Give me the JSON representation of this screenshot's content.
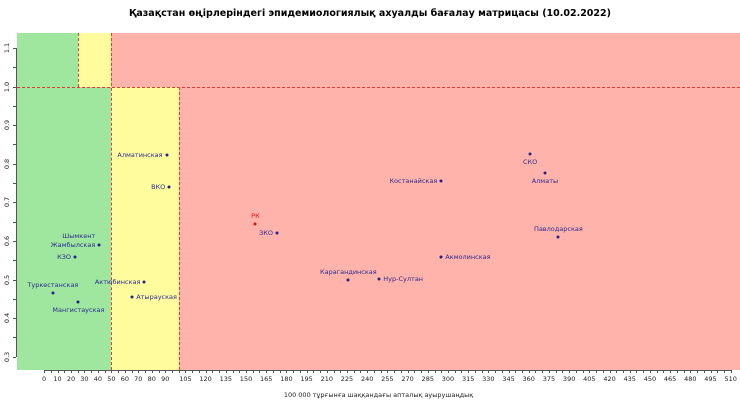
{
  "title": "Қазақстан өңірлеріндегі эпидемиологиялық ахуалды бағалау матрицасы (10.02.2022)",
  "chart_data": {
    "type": "scatter",
    "title": "Қазақстан өңірлеріндегі эпидемиологиялық ахуалды бағалау матрицасы (10.02.2022)",
    "xlabel": "100 000 тұрғынға шаққандағы апталық ауырушаңдық",
    "ylabel": "",
    "xlim": [
      -20.1,
      516.9
    ],
    "ylim": [
      0.2655,
      1.139
    ],
    "x_tick_range": {
      "from": 0,
      "to": 510,
      "minor_step": 5
    },
    "x_tick_labels": [
      0,
      10,
      20,
      30,
      40,
      50,
      60,
      70,
      80,
      90,
      105,
      120,
      135,
      150,
      165,
      180,
      195,
      210,
      225,
      240,
      255,
      270,
      285,
      300,
      315,
      330,
      345,
      360,
      375,
      390,
      405,
      420,
      435,
      450,
      465,
      480,
      495,
      510
    ],
    "y_tick_range": {
      "from": 0.3,
      "to": 1.1,
      "minor_step": 0.05
    },
    "y_tick_labels": [
      "0.3",
      "0.4",
      "0.5",
      "0.6",
      "0.7",
      "0.8",
      "0.9",
      "1.0",
      "1.1"
    ],
    "grid": false,
    "legend": "none",
    "threshold_line_y": 1.0,
    "zones": [
      {
        "x0": -20.1,
        "x1": 25,
        "y0": 1.0,
        "y1": 1.139,
        "color": "green"
      },
      {
        "x0": 25,
        "x1": 50,
        "y0": 1.0,
        "y1": 1.139,
        "color": "yellow"
      },
      {
        "x0": 50,
        "x1": 516.9,
        "y0": 1.0,
        "y1": 1.139,
        "color": "red"
      },
      {
        "x0": -20.1,
        "x1": 50,
        "y0": 0.2655,
        "y1": 1.0,
        "color": "green"
      },
      {
        "x0": 50,
        "x1": 100,
        "y0": 0.2655,
        "y1": 1.0,
        "color": "yellow"
      },
      {
        "x0": 100,
        "x1": 516.9,
        "y0": 0.2655,
        "y1": 1.0,
        "color": "red"
      }
    ],
    "dashed_lines": [
      {
        "type": "h",
        "y": 1.0,
        "x0": -20.1,
        "x1": 516.9
      },
      {
        "type": "v",
        "x": 25,
        "y0": 1.0,
        "y1": 1.139
      },
      {
        "type": "v",
        "x": 50,
        "y0": 0.2655,
        "y1": 1.139
      },
      {
        "type": "v",
        "x": 100,
        "y0": 0.2655,
        "y1": 1.0
      }
    ],
    "points": [
      {
        "name": "Туркестанская",
        "x": 6.5,
        "y": 0.466,
        "label_pos": "above"
      },
      {
        "name": "КЗО",
        "x": 23,
        "y": 0.558,
        "label_pos": "left"
      },
      {
        "name": "Мангистауская",
        "x": 25.5,
        "y": 0.441,
        "label_pos": "below"
      },
      {
        "name": "Шымкент",
        "x": 41,
        "y": 0.59,
        "label_pos": "left",
        "dy": -9,
        "hide_point": true
      },
      {
        "name": "Жамбылская",
        "x": 41,
        "y": 0.59,
        "label_pos": "left"
      },
      {
        "name": "Атырауская",
        "x": 65.5,
        "y": 0.454,
        "label_pos": "right"
      },
      {
        "name": "Актюбинская",
        "x": 74.5,
        "y": 0.494,
        "label_pos": "left"
      },
      {
        "name": "Алматинская",
        "x": 91,
        "y": 0.823,
        "label_pos": "left"
      },
      {
        "name": "ВКО",
        "x": 93,
        "y": 0.739,
        "label_pos": "left"
      },
      {
        "name": "РК",
        "x": 157,
        "y": 0.644,
        "label_pos": "above",
        "color": "#DD1111"
      },
      {
        "name": "ЗКО",
        "x": 173,
        "y": 0.62,
        "label_pos": "left"
      },
      {
        "name": "Карагандинская",
        "x": 226,
        "y": 0.499,
        "label_pos": "above"
      },
      {
        "name": "Нур-Султан",
        "x": 249,
        "y": 0.501,
        "label_pos": "right"
      },
      {
        "name": "Акмолинская",
        "x": 295,
        "y": 0.559,
        "label_pos": "right"
      },
      {
        "name": "Костанайская",
        "x": 295,
        "y": 0.755,
        "label_pos": "left"
      },
      {
        "name": "СКО",
        "x": 361,
        "y": 0.825,
        "label_pos": "below"
      },
      {
        "name": "Алматы",
        "x": 372,
        "y": 0.776,
        "label_pos": "below"
      },
      {
        "name": "Павлодарская",
        "x": 382,
        "y": 0.61,
        "label_pos": "above"
      }
    ],
    "colors": {
      "zone_green": "#9FE79F",
      "zone_yellow": "#FFFC9E",
      "zone_red": "#FFB3AB",
      "dashed_line": "#E83939",
      "point": "#22228A",
      "label": "#2B2B8F",
      "axis": "#555555",
      "tick_text": "#222222"
    }
  }
}
